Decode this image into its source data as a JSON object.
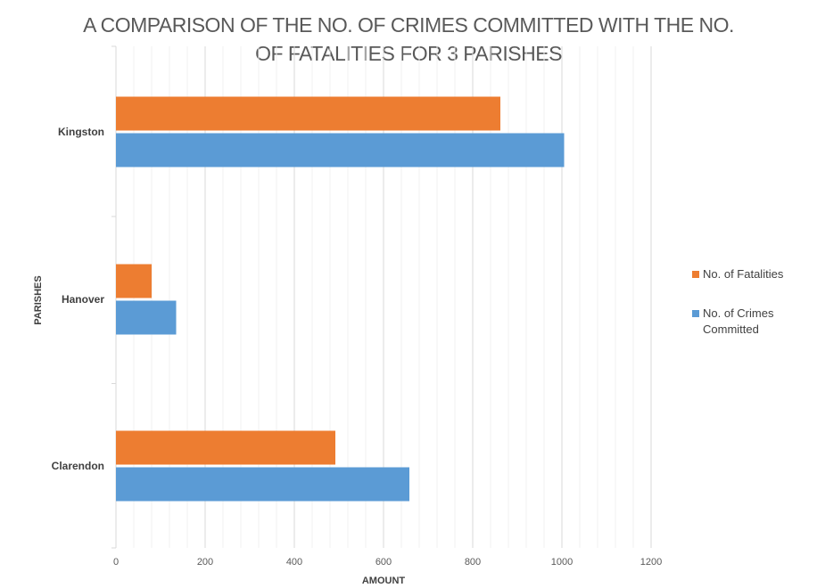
{
  "chart_data": {
    "type": "bar",
    "orientation": "horizontal",
    "title_lines": [
      "A COMPARISON OF THE NO. OF CRIMES COMMITTED WITH THE NO.",
      "OF FATALITIES FOR 3 PARISHES"
    ],
    "xlabel": "AMOUNT",
    "ylabel": "PARISHES",
    "categories": [
      "Kingston",
      "Hanover",
      "Clarendon"
    ],
    "xlim": [
      0,
      1200
    ],
    "x_ticks": [
      0,
      200,
      400,
      600,
      800,
      1000,
      1200
    ],
    "minor_gridlines": true,
    "legend_position": "right",
    "series": [
      {
        "name": "No. of Fatalities",
        "legend_label": "No. of Fatalities",
        "color": "#ED7D31",
        "values": [
          862,
          80,
          492
        ]
      },
      {
        "name": "No. of Crimes Committed",
        "legend_label": "No. of Crimes\nCommitted",
        "color": "#5B9BD5",
        "values": [
          1005,
          135,
          658
        ]
      }
    ]
  }
}
